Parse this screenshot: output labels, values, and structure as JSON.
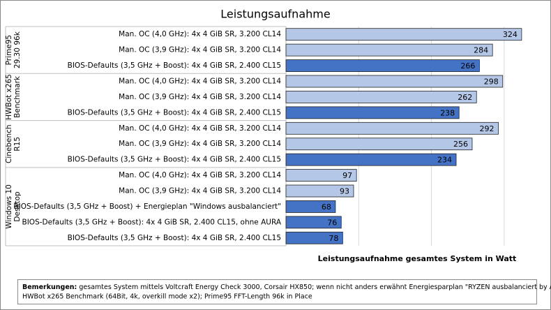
{
  "chart_data": {
    "type": "bar",
    "orientation": "horizontal",
    "title": "Leistungsaufnahme",
    "x_label": "Leistungsaufnahme  gesamtes System in Watt",
    "xlim": [
      0,
      350
    ],
    "xticks": [
      0,
      100,
      200,
      300
    ],
    "grid": true,
    "groups": [
      {
        "name": [
          "Prime95",
          "29.30 96k"
        ],
        "categories": [
          "Man. OC (4,0 GHz): 4x 4 GiB SR, 3.200 CL14",
          "Man. OC (3,9 GHz): 4x 4 GiB SR, 3.200 CL14",
          "BIOS-Defaults (3,5 GHz + Boost): 4x 4 GiB SR, 2.400 CL15"
        ],
        "values": [
          324,
          284,
          266
        ],
        "colors": [
          "#b4c7e7",
          "#b4c7e7",
          "#4472c4"
        ]
      },
      {
        "name": [
          "HWBot x265",
          "Benchmark"
        ],
        "categories": [
          "Man. OC (4,0 GHz): 4x 4 GiB SR, 3.200 CL14",
          "Man. OC (3,9 GHz): 4x 4 GiB SR, 3.200 CL14",
          "BIOS-Defaults (3,5 GHz + Boost): 4x 4 GiB SR, 2.400 CL15"
        ],
        "values": [
          298,
          262,
          238
        ],
        "colors": [
          "#b4c7e7",
          "#b4c7e7",
          "#4472c4"
        ]
      },
      {
        "name": [
          "Cinebench",
          "R15"
        ],
        "categories": [
          "Man. OC (4,0 GHz): 4x 4 GiB SR, 3.200 CL14",
          "Man. OC (3,9 GHz): 4x 4 GiB SR, 3.200 CL14",
          "BIOS-Defaults (3,5 GHz + Boost): 4x 4 GiB SR, 2.400 CL15"
        ],
        "values": [
          292,
          256,
          234
        ],
        "colors": [
          "#b4c7e7",
          "#b4c7e7",
          "#4472c4"
        ]
      },
      {
        "name": [
          "Windows 10",
          "Desktop"
        ],
        "categories": [
          "Man. OC (4,0 GHz): 4x 4 GiB SR, 3.200 CL14",
          "Man. OC (3,9 GHz): 4x 4 GiB SR, 3.200 CL14",
          "BIOS-Defaults (3,5 GHz + Boost) + Energieplan \"Windows ausbalanciert\"",
          "BIOS-Defaults (3,5 GHz + Boost): 4x 4 GiB SR, 2.400 CL15, ohne AURA",
          "BIOS-Defaults (3,5 GHz + Boost): 4x 4 GiB SR, 2.400 CL15"
        ],
        "values": [
          97,
          93,
          68,
          76,
          78
        ],
        "colors": [
          "#b4c7e7",
          "#b4c7e7",
          "#4472c4",
          "#4472c4",
          "#4472c4"
        ]
      }
    ],
    "note": {
      "label": "Bemerkungen:",
      "lines": [
        "gesamtes System mittels Voltcraft Energy Check 3000, Corsair HX850; wenn nicht anders erwähnt Energiesparplan \"RYZEN ausbalanciert by AMD\";",
        "HWBot x265 Benchmark (64Bit, 4k, overkill mode x2); Prime95 FFT-Length 96k in Place"
      ]
    }
  }
}
